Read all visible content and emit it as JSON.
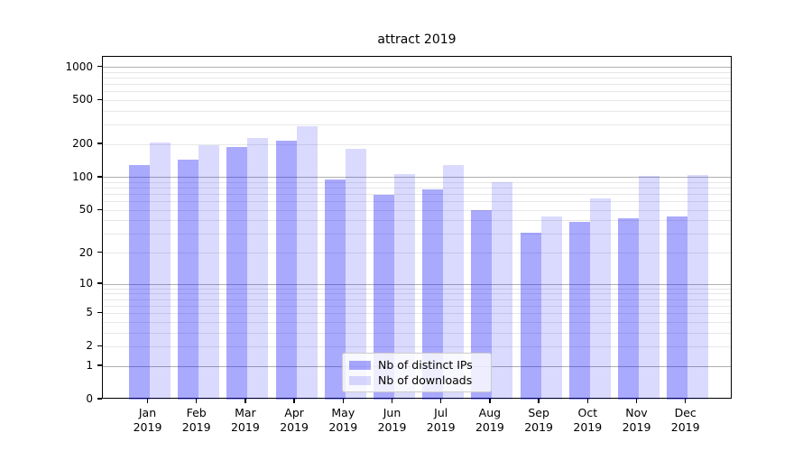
{
  "chart_data": {
    "type": "bar",
    "title": "attract 2019",
    "categories": [
      "Jan",
      "Feb",
      "Mar",
      "Apr",
      "May",
      "Jun",
      "Jul",
      "Aug",
      "Sep",
      "Oct",
      "Nov",
      "Dec"
    ],
    "year": "2019",
    "series": [
      {
        "name": "Nb of distinct IPs",
        "color": "rgba(10,10,250,0.35)",
        "values": [
          130,
          145,
          188,
          217,
          96,
          70,
          78,
          50,
          31,
          39,
          42,
          44
        ]
      },
      {
        "name": "Nb of downloads",
        "color": "rgba(10,10,250,0.15)",
        "values": [
          208,
          197,
          230,
          290,
          184,
          108,
          130,
          91,
          44,
          64,
          103,
          106
        ]
      }
    ],
    "y_ticks": [
      1000,
      500,
      200,
      100,
      50,
      20,
      10,
      5,
      2,
      1,
      0
    ],
    "y_tick_labels": [
      "1000",
      "500",
      "200",
      "100",
      "50",
      "20",
      "10",
      "5",
      "2",
      "1",
      "0"
    ],
    "y_scale": "log1p",
    "ylim": [
      0,
      1000
    ],
    "xlabel": "",
    "ylabel": "",
    "grid": "horizontal",
    "grid_major_values": [
      1,
      10,
      100,
      1000
    ],
    "grid_major_color": "#b0b0b0",
    "grid_minor_color": "#e7e7e7",
    "legend_position": "lower-center",
    "legend_items": [
      "Nb of distinct IPs",
      "Nb of downloads"
    ]
  }
}
